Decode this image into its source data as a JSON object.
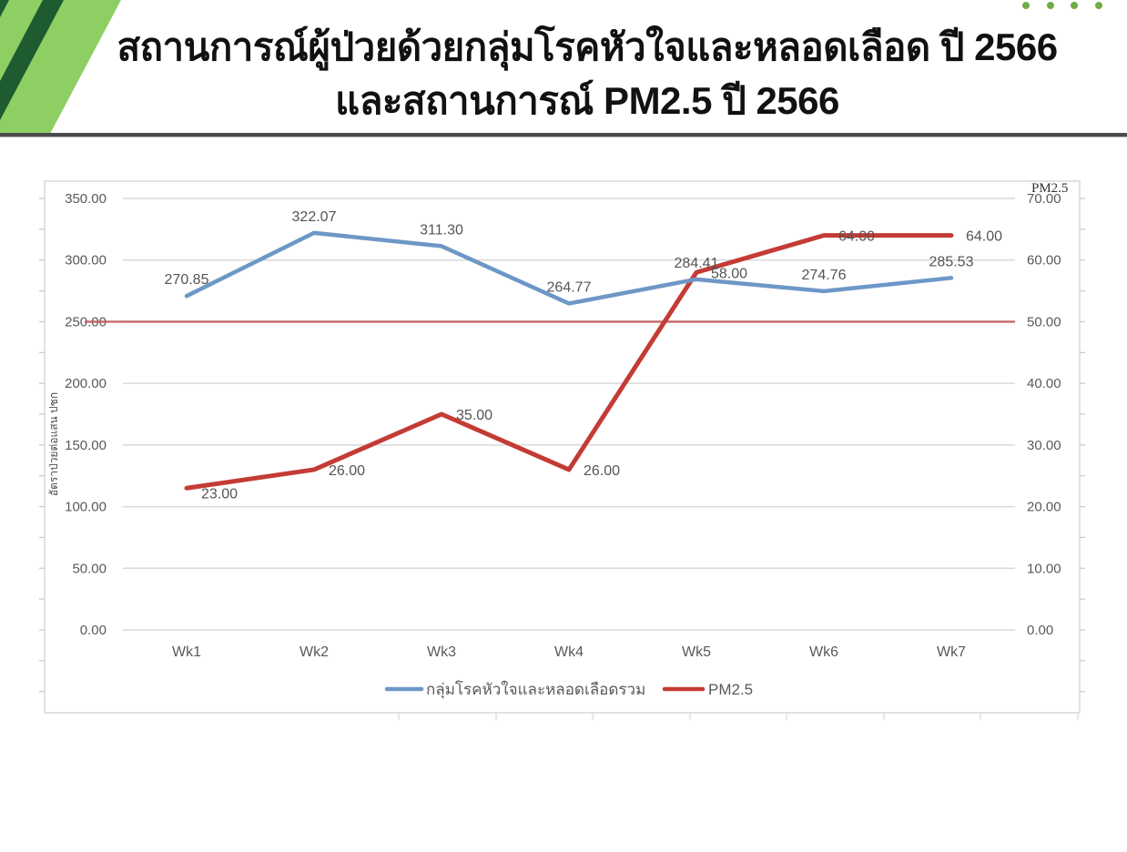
{
  "header": {
    "title_line1": "สถานการณ์ผู้ป่วยด้วยกลุ่มโรคหัวใจและหลอดเลือด ปี 2566",
    "title_line2": "และสถานการณ์ PM2.5 ปี 2566",
    "decoration": {
      "light_green": "#8ecf63",
      "dark_green": "#1e5b30",
      "dot_color": "#70ad47",
      "dot_count": 4
    },
    "divider_color": "#4a4a4a"
  },
  "chart_data": {
    "type": "line",
    "title": "",
    "categories": [
      "Wk1",
      "Wk2",
      "Wk3",
      "Wk4",
      "Wk5",
      "Wk6",
      "Wk7"
    ],
    "series": [
      {
        "name": "กลุ่มโรคหัวใจและหลอดเลือดรวม",
        "axis": "left",
        "color": "#6d97c6",
        "values": [
          270.85,
          322.07,
          311.3,
          264.77,
          284.41,
          274.76,
          285.53
        ],
        "labels": [
          "270.85",
          "322.07",
          "311.30",
          "264.77",
          "284.41",
          "274.76",
          "285.53"
        ]
      },
      {
        "name": "PM2.5",
        "axis": "right",
        "color": "#c43b36",
        "values": [
          23,
          26,
          35,
          26,
          58,
          64,
          64
        ],
        "labels": [
          "23.00",
          "26.00",
          "35.00",
          "26.00",
          "58.00",
          "64.00",
          "64.00"
        ]
      }
    ],
    "threshold_line": {
      "axis": "right",
      "value": 50,
      "color": "#c05a58"
    },
    "left_axis": {
      "title": "อัตราป่วยต่อแสน ปชก",
      "min": 0,
      "max": 350,
      "step": 50,
      "tick_labels": [
        "350.00",
        "300.00",
        "250.00",
        "200.00",
        "150.00",
        "100.00",
        "50.00",
        "0.00"
      ]
    },
    "right_axis": {
      "title": "PM2.5",
      "min": 0,
      "max": 70,
      "step": 10,
      "tick_labels": [
        "70.00",
        "60.00",
        "50.00",
        "40.00",
        "30.00",
        "20.00",
        "10.00",
        "0.00"
      ]
    },
    "legend": {
      "position": "bottom",
      "entries": [
        "กลุ่มโรคหัวใจและหลอดเลือดรวม",
        "PM2.5"
      ]
    },
    "grid": true,
    "colors": {
      "gridline": "#d9d9d9",
      "axis_text": "#595959",
      "data_label_text": "#555555"
    }
  }
}
